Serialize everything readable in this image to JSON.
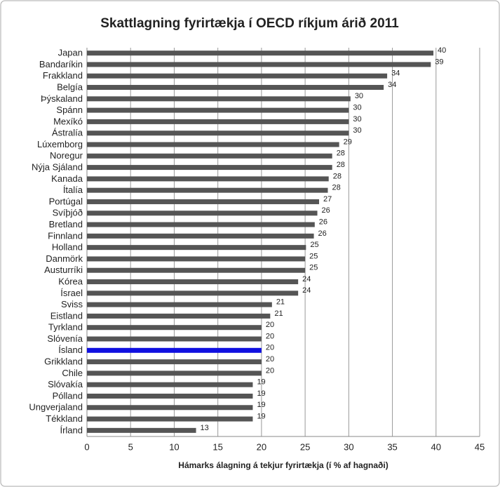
{
  "chart_data": {
    "type": "hbar",
    "title": "Skattlagning fyrirtækja í OECD ríkjum árið 2011",
    "x_label": "Hámarks álagning á tekjur fyrirtækja (í % af hagnaði)",
    "categories": [
      "Japan",
      "Bandaríkin",
      "Frakkland",
      "Belgía",
      "Þýskaland",
      "Spánn",
      "Mexíkó",
      "Ástralía",
      "Lúxemborg",
      "Noregur",
      "Nýja Sjáland",
      "Kanada",
      "Ítalía",
      "Portúgal",
      "Svíþjóð",
      "Bretland",
      "Finnland",
      "Holland",
      "Danmörk",
      "Austurríki",
      "Kórea",
      "Ísrael",
      "Sviss",
      "Eistland",
      "Tyrkland",
      "Slóvenía",
      "Ísland",
      "Grikkland",
      "Chile",
      "Slóvakía",
      "Pólland",
      "Ungverjaland",
      "Tékkland",
      "Írland"
    ],
    "values": [
      39.7,
      39.4,
      34.4,
      34.0,
      30.2,
      30,
      30,
      30,
      28.9,
      28.1,
      28.1,
      27.7,
      27.6,
      26.6,
      26.4,
      26.1,
      26,
      25.1,
      25,
      25,
      24.2,
      24.2,
      21.2,
      21,
      20,
      20,
      20,
      20,
      20,
      19,
      19,
      19,
      19,
      12.5
    ],
    "value_labels": [
      "40",
      "39",
      "34",
      "34",
      "30",
      "30",
      "30",
      "30",
      "29",
      "28",
      "28",
      "28",
      "28",
      "27",
      "26",
      "26",
      "26",
      "25",
      "25",
      "25",
      "24",
      "24",
      "21",
      "21",
      "20",
      "20",
      "20",
      "20",
      "20",
      "19",
      "19",
      "19",
      "19",
      "13"
    ],
    "colors": [
      "#555",
      "#555",
      "#555",
      "#555",
      "#555",
      "#555",
      "#555",
      "#555",
      "#555",
      "#555",
      "#555",
      "#555",
      "#555",
      "#555",
      "#555",
      "#555",
      "#555",
      "#555",
      "#555",
      "#555",
      "#555",
      "#555",
      "#555",
      "#555",
      "#555",
      "#555",
      "#1010e0",
      "#555",
      "#555",
      "#555",
      "#555",
      "#555",
      "#555",
      "#555"
    ],
    "xlim": [
      0,
      45
    ],
    "xticks": [
      0,
      5,
      10,
      15,
      20,
      25,
      30,
      35,
      40,
      45
    ],
    "grid": true
  }
}
